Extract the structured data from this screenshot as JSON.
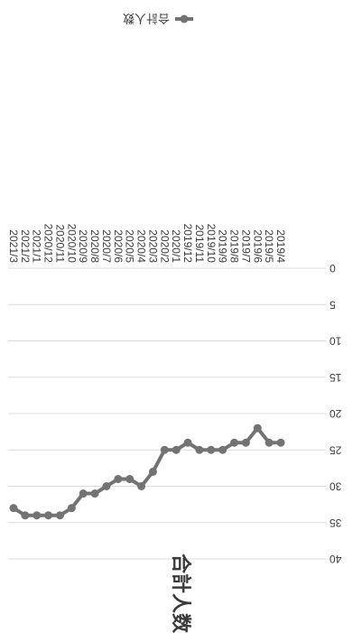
{
  "chart_data": {
    "type": "line",
    "title": "合計人数",
    "categories": [
      "2019/4",
      "2019/5",
      "2019/6",
      "2019/7",
      "2019/8",
      "2019/9",
      "2019/10",
      "2019/11",
      "2019/12",
      "2020/1",
      "2020/2",
      "2020/3",
      "2020/4",
      "2020/5",
      "2020/6",
      "2020/7",
      "2020/8",
      "2020/9",
      "2020/10",
      "2020/11",
      "2020/12",
      "2021/1",
      "2021/2",
      "2021/3"
    ],
    "series": [
      {
        "name": "合計人数",
        "values": [
          24,
          24,
          22,
          24,
          24,
          25,
          25,
          25,
          24,
          25,
          25,
          28,
          30,
          29,
          29,
          30,
          31,
          31,
          33,
          34,
          34,
          34,
          34,
          33
        ],
        "color": "#737373"
      }
    ],
    "xlabel": "",
    "ylabel": "",
    "ylim": [
      0,
      40
    ],
    "yticks": [
      0,
      5,
      10,
      15,
      20,
      25,
      30,
      35,
      40
    ],
    "grid": true,
    "legend_position": "bottom",
    "orientation": "rotated-180"
  }
}
